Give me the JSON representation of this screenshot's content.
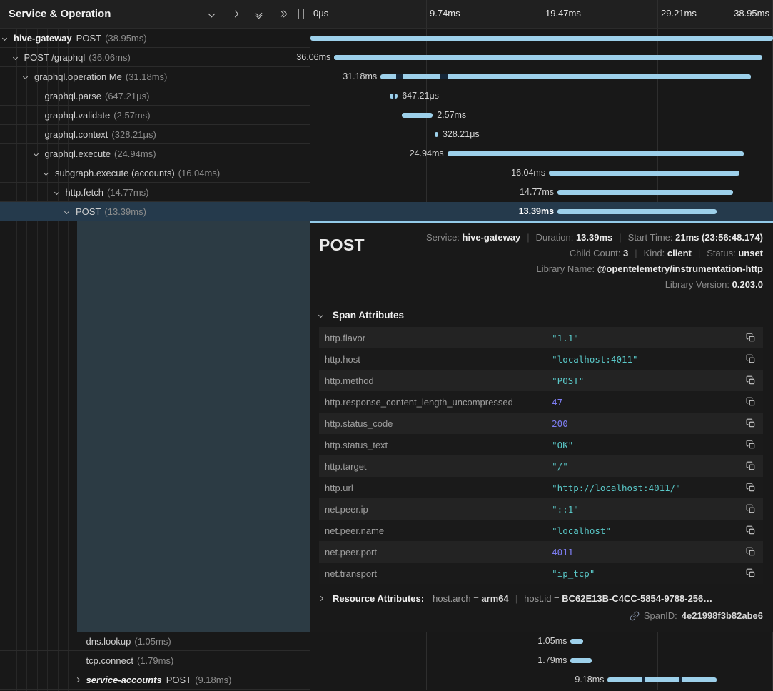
{
  "colors": {
    "bar_color": "#9dd0ea",
    "selected_bg": "#253a4c",
    "accent": "#93cbe9",
    "teal_block": "#2c3b44",
    "string_color": "#5ac8c8",
    "number_color": "#7d7df2"
  },
  "header": {
    "title": "Service & Operation",
    "icons": [
      "collapse-one-icon",
      "expand-one-icon",
      "collapse-all-icon",
      "expand-all-icon",
      "panel-resize-handle"
    ]
  },
  "timeline": {
    "total_ms": 38.95,
    "ticks": [
      "0μs",
      "9.74ms",
      "19.47ms",
      "29.21ms",
      "38.95ms"
    ]
  },
  "spans": [
    {
      "level": 0,
      "chevron": "down",
      "service": "hive-gateway",
      "name": "POST",
      "duration": "(38.95ms)",
      "start_ms": 0,
      "dur_ms": 38.95,
      "bar_label": "",
      "label_side": "none",
      "selected": false
    },
    {
      "level": 1,
      "chevron": "down",
      "service": "",
      "name": "POST /graphql",
      "duration": "(36.06ms)",
      "start_ms": 2.0,
      "dur_ms": 36.06,
      "bar_label": "36.06ms",
      "label_side": "left",
      "selected": false
    },
    {
      "level": 2,
      "chevron": "down",
      "service": "",
      "name": "graphql.operation Me",
      "duration": "(31.18ms)",
      "start_ms": 5.9,
      "dur_ms": 31.18,
      "bar_label": "31.18ms",
      "label_side": "left",
      "selected": false,
      "notches": [
        {
          "at": 4.3,
          "w": 1.8
        },
        {
          "at": 16,
          "w": 2.2
        }
      ]
    },
    {
      "level": 3,
      "chevron": null,
      "service": "",
      "name": "graphql.parse",
      "duration": "(647.21μs)",
      "start_ms": 6.7,
      "dur_ms": 0.64721,
      "bar_label": "647.21μs",
      "label_side": "right",
      "selected": false,
      "notches": [
        {
          "at": 45,
          "w": 18
        }
      ]
    },
    {
      "level": 3,
      "chevron": null,
      "service": "",
      "name": "graphql.validate",
      "duration": "(2.57ms)",
      "start_ms": 7.72,
      "dur_ms": 2.57,
      "bar_label": "2.57ms",
      "label_side": "right",
      "selected": false
    },
    {
      "level": 3,
      "chevron": null,
      "service": "",
      "name": "graphql.context",
      "duration": "(328.21μs)",
      "start_ms": 10.43,
      "dur_ms": 0.32821,
      "bar_label": "328.21μs",
      "label_side": "right",
      "selected": false
    },
    {
      "level": 3,
      "chevron": "down",
      "service": "",
      "name": "graphql.execute",
      "duration": "(24.94ms)",
      "start_ms": 11.52,
      "dur_ms": 24.94,
      "bar_label": "24.94ms",
      "label_side": "left",
      "selected": false
    },
    {
      "level": 4,
      "chevron": "down",
      "service": "",
      "name": "subgraph.execute (accounts)",
      "duration": "(16.04ms)",
      "start_ms": 20.08,
      "dur_ms": 16.04,
      "bar_label": "16.04ms",
      "label_side": "left",
      "selected": false
    },
    {
      "level": 5,
      "chevron": "down",
      "service": "",
      "name": "http.fetch",
      "duration": "(14.77ms)",
      "start_ms": 20.8,
      "dur_ms": 14.77,
      "bar_label": "14.77ms",
      "label_side": "left",
      "selected": false
    },
    {
      "level": 6,
      "chevron": "down",
      "service": "",
      "name": "POST",
      "duration": "(13.39ms)",
      "start_ms": 20.8,
      "dur_ms": 13.39,
      "bar_label": "13.39ms",
      "label_side": "left",
      "selected": true
    }
  ],
  "spans_bottom": [
    {
      "level": 7,
      "chevron": null,
      "service": "",
      "name": "dns.lookup",
      "duration": "(1.05ms)",
      "start_ms": 21.9,
      "dur_ms": 1.05,
      "bar_label": "1.05ms",
      "label_side": "left",
      "selected": false
    },
    {
      "level": 7,
      "chevron": null,
      "service": "",
      "name": "tcp.connect",
      "duration": "(1.79ms)",
      "start_ms": 21.9,
      "dur_ms": 1.79,
      "bar_label": "1.79ms",
      "label_side": "left",
      "selected": false
    },
    {
      "level": 7,
      "chevron": "right",
      "service": "service-accounts",
      "service_italic": true,
      "name": "POST",
      "duration": "(9.18ms)",
      "start_ms": 25.03,
      "dur_ms": 9.18,
      "bar_label": "9.18ms",
      "label_side": "left",
      "selected": false,
      "notches": [
        {
          "at": 32,
          "w": 1.8
        },
        {
          "at": 66,
          "w": 1.8
        }
      ]
    }
  ],
  "detail": {
    "title": "POST",
    "meta": [
      [
        {
          "label": "Service:",
          "value": "hive-gateway"
        },
        {
          "label": "Duration:",
          "value": "13.39ms"
        },
        {
          "label": "Start Time:",
          "value": "21ms (23:56:48.174)"
        }
      ],
      [
        {
          "label": "Child Count:",
          "value": "3"
        },
        {
          "label": "Kind:",
          "value": "client"
        },
        {
          "label": "Status:",
          "value": "unset"
        }
      ],
      [
        {
          "label": "Library Name:",
          "value": "@opentelemetry/instrumentation-http"
        }
      ],
      [
        {
          "label": "Library Version:",
          "value": "0.203.0"
        }
      ]
    ],
    "span_attributes_title": "Span Attributes",
    "attributes": [
      {
        "key": "http.flavor",
        "value": "\"1.1\"",
        "type": "string"
      },
      {
        "key": "http.host",
        "value": "\"localhost:4011\"",
        "type": "string"
      },
      {
        "key": "http.method",
        "value": "\"POST\"",
        "type": "string"
      },
      {
        "key": "http.response_content_length_uncompressed",
        "value": "47",
        "type": "number"
      },
      {
        "key": "http.status_code",
        "value": "200",
        "type": "number"
      },
      {
        "key": "http.status_text",
        "value": "\"OK\"",
        "type": "string"
      },
      {
        "key": "http.target",
        "value": "\"/\"",
        "type": "string"
      },
      {
        "key": "http.url",
        "value": "\"http://localhost:4011/\"",
        "type": "string"
      },
      {
        "key": "net.peer.ip",
        "value": "\"::1\"",
        "type": "string"
      },
      {
        "key": "net.peer.name",
        "value": "\"localhost\"",
        "type": "string"
      },
      {
        "key": "net.peer.port",
        "value": "4011",
        "type": "number"
      },
      {
        "key": "net.transport",
        "value": "\"ip_tcp\"",
        "type": "string"
      }
    ],
    "resource": {
      "title": "Resource Attributes:",
      "preview": [
        {
          "key": "host.arch",
          "value": "arm64"
        },
        {
          "key": "host.id",
          "value": "BC62E13B-C4CC-5854-9788-256…"
        }
      ]
    },
    "span_id_label": "SpanID:",
    "span_id": "4e21998f3b82abe6"
  }
}
